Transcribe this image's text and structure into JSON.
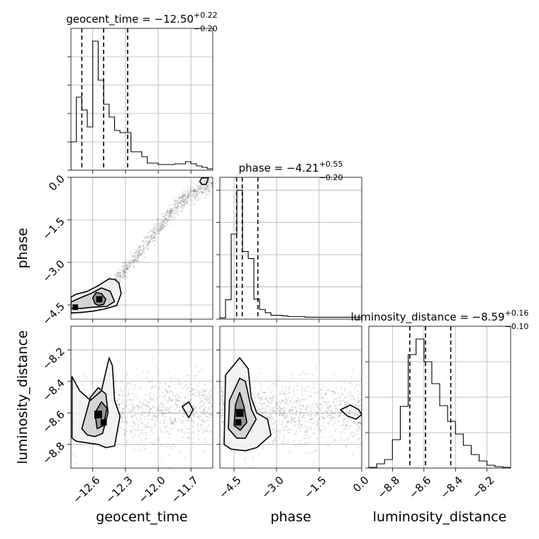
{
  "chart_data": {
    "type": "corner",
    "parameters": [
      {
        "key": "geocent_time",
        "label": "geocent_time",
        "range": [
          -12.8,
          -11.5
        ],
        "ticks": [
          -12.6,
          -12.3,
          -12.0,
          -11.7
        ],
        "tick_labels": [
          "−12.6",
          "−12.3",
          "−12.0",
          "−11.7"
        ],
        "title_main": "geocent_time = −12.50",
        "title_up": "+0.22",
        "title_down": "−0.20",
        "median": -12.5,
        "q_low": -12.7,
        "q_high": -12.28,
        "histogram": {
          "edges": [
            -12.8,
            -12.75,
            -12.7,
            -12.65,
            -12.6,
            -12.55,
            -12.5,
            -12.45,
            -12.4,
            -12.35,
            -12.3,
            -12.25,
            -12.2,
            -12.15,
            -12.1,
            -12.05,
            -12.0,
            -11.95,
            -11.9,
            -11.85,
            -11.8,
            -11.75,
            -11.7,
            -11.65,
            -11.6,
            -11.55,
            -11.5
          ],
          "counts": [
            40,
            103,
            85,
            61,
            182,
            127,
            93,
            75,
            56,
            53,
            53,
            26,
            26,
            19,
            10,
            10,
            8,
            8,
            8,
            9,
            9,
            12,
            9,
            6,
            4,
            2
          ]
        },
        "hist_ylim": [
          0,
          200
        ],
        "hist_yticks": [
          0,
          40,
          80,
          120,
          160
        ]
      },
      {
        "key": "phase",
        "label": "phase",
        "range": [
          -5.0,
          0.0
        ],
        "ticks": [
          -4.5,
          -3.0,
          -1.5,
          0.0
        ],
        "tick_labels": [
          "−4.5",
          "−3.0",
          "−1.5",
          "0.0"
        ],
        "title_main": "phase = −4.21",
        "title_up": "+0.55",
        "title_down": "−0.20",
        "median": -4.21,
        "q_low": -4.41,
        "q_high": -3.66,
        "histogram": {
          "edges": [
            -5.0,
            -4.8,
            -4.6,
            -4.4,
            -4.2,
            -4.0,
            -3.8,
            -3.6,
            -3.4,
            -3.2,
            -3.0,
            -2.8,
            -2.6,
            -2.4,
            -2.2,
            -2.0,
            -1.8,
            -1.6,
            -1.4,
            -1.2,
            -1.0,
            -0.8,
            -0.6,
            -0.4,
            -0.2,
            0.0
          ],
          "counts": [
            2,
            30,
            132,
            200,
            105,
            94,
            31,
            15,
            10,
            6,
            6,
            5,
            4,
            4,
            4,
            3,
            3,
            3,
            3,
            3,
            3,
            3,
            3,
            3,
            3
          ]
        },
        "hist_ylim": [
          0,
          220
        ],
        "hist_yticks": [
          0,
          50,
          100,
          150,
          200
        ]
      },
      {
        "key": "luminosity_distance",
        "label": "luminosity_distance",
        "range": [
          -8.95,
          -8.05
        ],
        "ticks": [
          -8.8,
          -8.6,
          -8.4,
          -8.2
        ],
        "tick_labels": [
          "−8.8",
          "−8.6",
          "−8.4",
          "−8.2"
        ],
        "title_main": "luminosity_distance = −8.59",
        "title_up": "+0.16",
        "title_down": "−0.10",
        "median": -8.59,
        "q_low": -8.69,
        "q_high": -8.43,
        "histogram": {
          "edges": [
            -8.95,
            -8.9,
            -8.85,
            -8.8,
            -8.75,
            -8.7,
            -8.65,
            -8.6,
            -8.55,
            -8.5,
            -8.45,
            -8.4,
            -8.35,
            -8.3,
            -8.25,
            -8.2,
            -8.15,
            -8.1,
            -8.05
          ],
          "counts": [
            1,
            6,
            12,
            40,
            87,
            160,
            182,
            150,
            119,
            88,
            66,
            48,
            32,
            19,
            10,
            4,
            2,
            1
          ]
        },
        "hist_ylim": [
          0,
          200
        ],
        "hist_yticks": [
          0,
          50,
          100,
          150
        ]
      }
    ],
    "pairs": [
      {
        "x": "geocent_time",
        "y": "phase",
        "cloud": {
          "x": [
            -12.8,
            -12.7,
            -12.6,
            -12.5,
            -12.4,
            -12.3,
            -12.2,
            -12.1,
            -12.0,
            -11.9,
            -11.8,
            -11.7,
            -11.6,
            -11.5
          ],
          "y": [
            -4.6,
            -4.5,
            -4.3,
            -4.0,
            -3.7,
            -3.3,
            -2.8,
            -2.3,
            -1.8,
            -1.3,
            -0.9,
            -0.6,
            -0.4,
            -0.2
          ],
          "spread": 0.25
        },
        "contours": [
          {
            "x": [
              -12.8,
              -12.7,
              -12.6,
              -12.5,
              -12.38,
              -12.34,
              -12.36,
              -12.4,
              -12.45,
              -12.55,
              -12.65,
              -12.75,
              -12.8
            ],
            "y": [
              -4.78,
              -4.76,
              -4.72,
              -4.65,
              -4.52,
              -4.1,
              -3.72,
              -3.6,
              -3.58,
              -3.82,
              -4.02,
              -4.12,
              -4.22
            ]
          },
          {
            "x": [
              -12.8,
              -12.7,
              -12.6,
              -12.47,
              -12.4,
              -12.44,
              -12.52,
              -12.62,
              -12.72,
              -12.8
            ],
            "y": [
              -4.62,
              -4.62,
              -4.58,
              -4.55,
              -4.38,
              -4.02,
              -3.9,
              -4.1,
              -4.26,
              -4.4
            ]
          },
          {
            "x": [
              -12.55,
              -12.5,
              -12.48,
              -12.52,
              -12.57,
              -12.6,
              -12.58,
              -12.55
            ],
            "y": [
              -4.52,
              -4.48,
              -4.3,
              -4.1,
              -4.06,
              -4.25,
              -4.45,
              -4.52
            ]
          },
          {
            "x": [
              -11.6,
              -11.56,
              -11.54,
              -11.6,
              -11.62,
              -11.6
            ],
            "y": [
              -0.25,
              -0.25,
              -0.02,
              -0.02,
              -0.15,
              -0.25
            ]
          }
        ],
        "fill": [
          {
            "x": -12.54,
            "y": -4.3,
            "size": 0.04
          },
          {
            "x": -12.76,
            "y": -4.58,
            "size": 0.03
          }
        ]
      },
      {
        "x": "geocent_time",
        "y": "luminosity_distance",
        "cloud": {
          "x": [
            -12.75,
            -12.65,
            -12.55,
            -12.45,
            -12.35,
            -12.25,
            -12.15,
            -12.05,
            -11.95,
            -11.85,
            -11.75,
            -11.65,
            -11.55
          ],
          "y": [
            -8.62,
            -8.6,
            -8.58,
            -8.55,
            -8.57,
            -8.6,
            -8.61,
            -8.6,
            -8.59,
            -8.58,
            -8.6,
            -8.59,
            -8.6
          ],
          "spread": 0.18
        },
        "contours": [
          {
            "x": [
              -12.79,
              -12.75,
              -12.65,
              -12.55,
              -12.48,
              -12.4,
              -12.35,
              -12.4,
              -12.42,
              -12.45,
              -12.52,
              -12.62,
              -12.72,
              -12.79,
              -12.79
            ],
            "y": [
              -8.76,
              -8.78,
              -8.79,
              -8.8,
              -8.82,
              -8.81,
              -8.62,
              -8.52,
              -8.3,
              -8.25,
              -8.46,
              -8.52,
              -8.46,
              -8.37,
              -8.76
            ]
          },
          {
            "x": [
              -12.7,
              -12.65,
              -12.58,
              -12.51,
              -12.46,
              -12.48,
              -12.55,
              -12.62,
              -12.7
            ],
            "y": [
              -8.7,
              -8.74,
              -8.75,
              -8.73,
              -8.6,
              -8.48,
              -8.44,
              -8.5,
              -8.7
            ]
          },
          {
            "x": [
              -12.56,
              -12.5,
              -12.47,
              -12.52,
              -12.58,
              -12.56
            ],
            "y": [
              -8.7,
              -8.68,
              -8.57,
              -8.53,
              -8.6,
              -8.7
            ]
          },
          {
            "x": [
              -11.78,
              -11.72,
              -11.68,
              -11.72,
              -11.78
            ],
            "y": [
              -8.56,
              -8.53,
              -8.58,
              -8.63,
              -8.56
            ]
          }
        ],
        "fill": [
          {
            "x": -12.55,
            "y": -8.61,
            "size": 0.05
          },
          {
            "x": -12.5,
            "y": -8.66,
            "size": 0.04
          }
        ]
      },
      {
        "x": "phase",
        "y": "luminosity_distance",
        "cloud": {
          "x": [
            -4.7,
            -4.5,
            -4.3,
            -4.1,
            -3.8,
            -3.4,
            -3.0,
            -2.5,
            -2.0,
            -1.5,
            -1.0,
            -0.5,
            -0.1
          ],
          "y": [
            -8.55,
            -8.6,
            -8.62,
            -8.63,
            -8.6,
            -8.58,
            -8.6,
            -8.59,
            -8.61,
            -8.6,
            -8.58,
            -8.59,
            -8.6
          ],
          "spread": 0.17
        },
        "contours": [
          {
            "x": [
              -4.85,
              -4.6,
              -4.1,
              -3.9,
              -3.7,
              -3.2,
              -3.32,
              -3.7,
              -3.9,
              -4.0,
              -4.3,
              -4.8,
              -4.85
            ],
            "y": [
              -8.8,
              -8.83,
              -8.84,
              -8.83,
              -8.82,
              -8.74,
              -8.64,
              -8.6,
              -8.5,
              -8.32,
              -8.25,
              -8.36,
              -8.8
            ]
          },
          {
            "x": [
              -4.7,
              -4.4,
              -4.1,
              -3.72,
              -3.88,
              -4.1,
              -4.3,
              -4.66,
              -4.7
            ],
            "y": [
              -8.7,
              -8.76,
              -8.76,
              -8.64,
              -8.58,
              -8.4,
              -8.38,
              -8.52,
              -8.7
            ]
          },
          {
            "x": [
              -4.5,
              -4.28,
              -4.05,
              -4.15,
              -4.3,
              -4.45,
              -4.5
            ],
            "y": [
              -8.68,
              -8.71,
              -8.66,
              -8.56,
              -8.47,
              -8.55,
              -8.68
            ]
          },
          {
            "x": [
              -0.75,
              -0.4,
              -0.1,
              0.0,
              -0.2,
              -0.5,
              -0.75
            ],
            "y": [
              -8.58,
              -8.55,
              -8.58,
              -8.61,
              -8.64,
              -8.62,
              -8.58
            ]
          }
        ],
        "fill": [
          {
            "x": -4.3,
            "y": -8.6,
            "size": 0.05
          },
          {
            "x": -4.35,
            "y": -8.66,
            "size": 0.04
          }
        ]
      }
    ],
    "grid": true,
    "quantile_lines": "dashed"
  }
}
